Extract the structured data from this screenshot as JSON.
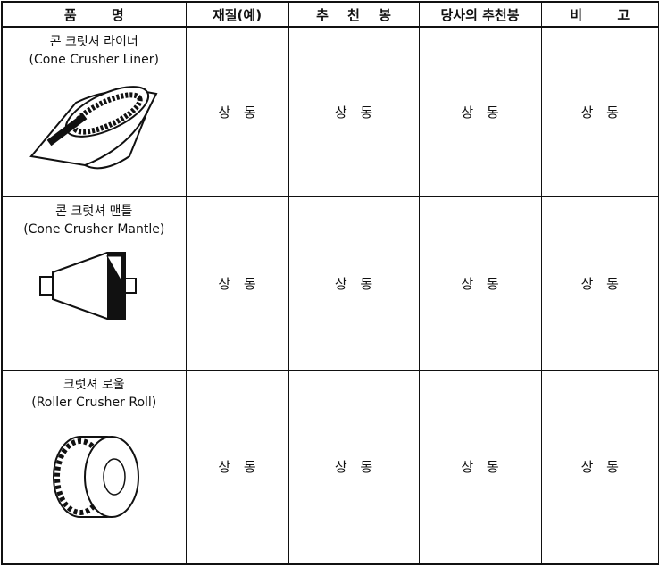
{
  "table": {
    "header": [
      "품 명",
      "재질(예)",
      "추 천 봉",
      "당사의 추천봉",
      "비 고"
    ],
    "rows": [
      {
        "name_ko": "콘 크럿셔 라이너",
        "name_en": "(Cone Crusher Liner)",
        "cells": [
          "상 동",
          "상 동",
          "상 동",
          "상 동"
        ]
      },
      {
        "name_ko": "콘 크럿셔 맨틀",
        "name_en": "(Cone Crusher Mantle)",
        "cells": [
          "상 동",
          "상 동",
          "상 동",
          "상 동"
        ]
      },
      {
        "name_ko": "크럿셔 로울",
        "name_en": "(Roller Crusher Roll)",
        "cells": [
          "상 동",
          "상 동",
          "상 동",
          "상 동"
        ]
      }
    ]
  }
}
